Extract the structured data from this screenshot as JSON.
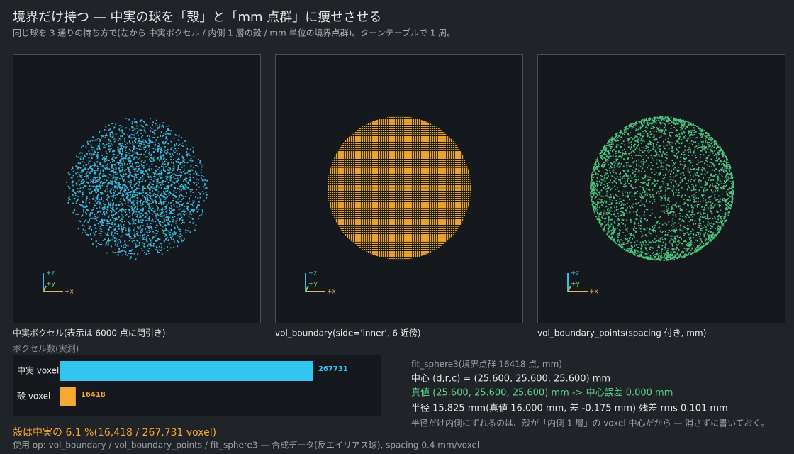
{
  "header": {
    "title": "境界だけ持つ — 中実の球を「殻」と「mm 点群」に痩せさせる",
    "subtitle": "同じ球を 3 通りの持ち方で(左から 中実ボクセル / 内側 1 層の殻 / mm 単位の境界点群)。ターンテーブルで 1 周。"
  },
  "axis_labels": [
    "+z",
    "+y",
    "+x"
  ],
  "panels": [
    {
      "caption": "中実ボクセル(表示は 6000 点に間引き)"
    },
    {
      "caption": "vol_boundary(side='inner', 6 近傍)"
    },
    {
      "caption": "vol_boundary_points(spacing 付き, mm)"
    }
  ],
  "chart_data": {
    "type": "bar",
    "orientation": "horizontal",
    "title": "ボクセル数(実測)",
    "categories": [
      "中実 voxel",
      "殻 voxel"
    ],
    "values": [
      267731,
      16418
    ],
    "colors": [
      "#31c6ef",
      "#f7a833"
    ]
  },
  "fit": {
    "heading": "fit_sphere3(境界点群 16418 点, mm)",
    "center": "中心 (d,r,c) = (25.600, 25.600, 25.600) mm",
    "truth": "真値 (25.600, 25.600, 25.600) mm -> 中心誤差 0.000 mm",
    "radius": "半径 15.825 mm(真値 16.000 mm, 差 -0.175 mm)  残差 rms 0.101 mm",
    "note": "半径だけ内側にずれるのは、殻が「内側 1 層」の voxel 中心だから — 消さずに書いておく。"
  },
  "footer": {
    "ratio": "殻は中実の 6.1 %(16,418 / 267,731 voxel)",
    "ops": "使用 op: vol_boundary / vol_boundary_points / fit_sphere3 — 合成データ(反エイリアス球), spacing 0.4 mm/voxel"
  }
}
